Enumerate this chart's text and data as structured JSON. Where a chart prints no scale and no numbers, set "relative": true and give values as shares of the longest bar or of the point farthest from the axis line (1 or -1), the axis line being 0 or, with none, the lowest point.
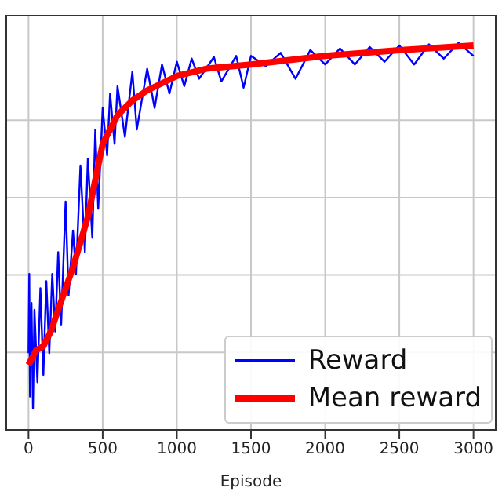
{
  "chart_data": {
    "type": "line",
    "xlabel": "Episode",
    "relative": true,
    "xlim": [
      -150,
      3150
    ],
    "xticks": [
      0,
      500,
      1000,
      1500,
      2000,
      2500,
      3000
    ],
    "grid": true,
    "legend": "bottom right",
    "marker": "none",
    "line_style": "solid",
    "series": [
      {
        "name": "Reward",
        "color": "#0000ff",
        "x": [
          0,
          5,
          10,
          20,
          30,
          40,
          60,
          80,
          100,
          120,
          140,
          160,
          180,
          200,
          220,
          250,
          270,
          300,
          320,
          350,
          380,
          400,
          430,
          450,
          470,
          500,
          530,
          550,
          580,
          600,
          650,
          700,
          730,
          800,
          850,
          900,
          950,
          1000,
          1050,
          1100,
          1150,
          1250,
          1300,
          1400,
          1450,
          1500,
          1600,
          1700,
          1800,
          1900,
          2000,
          2100,
          2200,
          2300,
          2400,
          2500,
          2600,
          2700,
          2800,
          2900,
          3000
        ],
        "values": [
          0.198,
          0.403,
          0.086,
          0.328,
          0.056,
          0.31,
          0.123,
          0.366,
          0.142,
          0.384,
          0.198,
          0.403,
          0.254,
          0.459,
          0.272,
          0.59,
          0.347,
          0.515,
          0.403,
          0.683,
          0.459,
          0.701,
          0.496,
          0.776,
          0.571,
          0.832,
          0.709,
          0.869,
          0.739,
          0.888,
          0.757,
          0.925,
          0.776,
          0.933,
          0.832,
          0.944,
          0.869,
          0.951,
          0.888,
          0.959,
          0.907,
          0.963,
          0.9,
          0.966,
          0.884,
          0.966,
          0.94,
          0.974,
          0.907,
          0.981,
          0.944,
          0.985,
          0.944,
          0.989,
          0.951,
          0.993,
          0.944,
          0.996,
          0.959,
          1.0,
          0.966
        ]
      },
      {
        "name": "Mean reward",
        "color": "#ff0000",
        "x": [
          0,
          50,
          100,
          150,
          200,
          300,
          400,
          450,
          500,
          600,
          700,
          800,
          1000,
          1200,
          1500,
          2000,
          2500,
          3000
        ],
        "values": [
          0.168,
          0.205,
          0.216,
          0.254,
          0.31,
          0.42,
          0.55,
          0.646,
          0.739,
          0.813,
          0.851,
          0.877,
          0.914,
          0.933,
          0.944,
          0.966,
          0.981,
          0.993
        ]
      }
    ]
  }
}
